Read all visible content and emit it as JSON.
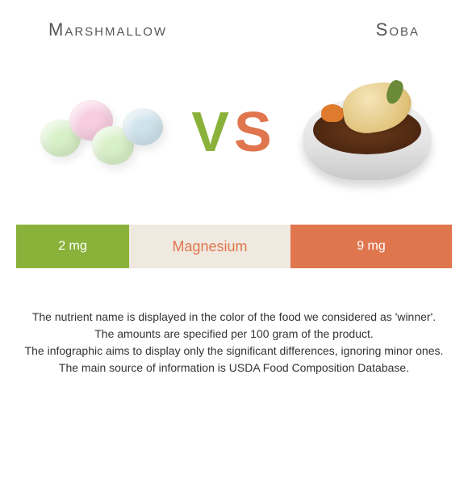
{
  "foods": {
    "left": {
      "title": "Marshmallow"
    },
    "right": {
      "title": "Soba"
    }
  },
  "vs": {
    "v": "V",
    "s": "S"
  },
  "colors": {
    "left_food": "#8ab23a",
    "right_food": "#e0764e",
    "mid_bg": "#f0e9df",
    "marsh_c1": "#d8f0c8",
    "marsh_c2": "#f7cde0",
    "marsh_c3": "#d8f0c8",
    "marsh_c4": "#cfe3ec"
  },
  "nutrient": {
    "name": "Magnesium",
    "left_value": "2 mg",
    "right_value": "9 mg",
    "winner": "right"
  },
  "footer": {
    "l1": "The nutrient name is displayed in the color of the food we considered as 'winner'.",
    "l2": "The amounts are specified per 100 gram of the product.",
    "l3": "The infographic aims to display only the significant differences, ignoring minor ones.",
    "l4": "The main source of information is USDA Food Composition Database."
  }
}
